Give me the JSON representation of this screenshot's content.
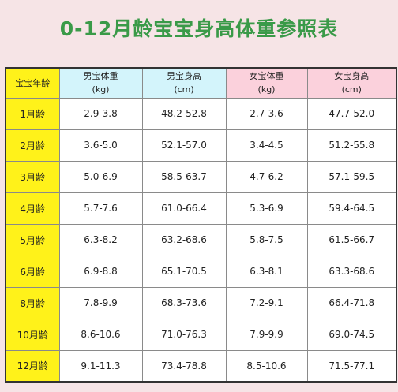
{
  "title": "0-12月龄宝宝身高体重参照表",
  "colors": {
    "background": "#f6e4e6",
    "title": "#3a9a48",
    "age_column": "#fff21a",
    "boy_header": "#d3f4fb",
    "girl_header": "#fbd1dc"
  },
  "table": {
    "headers": [
      {
        "label": "宝宝年龄",
        "unit": ""
      },
      {
        "label": "男宝体重",
        "unit": "(kg)"
      },
      {
        "label": "男宝身高",
        "unit": "(cm)"
      },
      {
        "label": "女宝体重",
        "unit": "(kg)"
      },
      {
        "label": "女宝身高",
        "unit": "(cm)"
      }
    ],
    "rows": [
      {
        "age": "1月龄",
        "boy_weight": "2.9-3.8",
        "boy_height": "48.2-52.8",
        "girl_weight": "2.7-3.6",
        "girl_height": "47.7-52.0"
      },
      {
        "age": "2月龄",
        "boy_weight": "3.6-5.0",
        "boy_height": "52.1-57.0",
        "girl_weight": "3.4-4.5",
        "girl_height": "51.2-55.8"
      },
      {
        "age": "3月龄",
        "boy_weight": "5.0-6.9",
        "boy_height": "58.5-63.7",
        "girl_weight": "4.7-6.2",
        "girl_height": "57.1-59.5"
      },
      {
        "age": "4月龄",
        "boy_weight": "5.7-7.6",
        "boy_height": "61.0-66.4",
        "girl_weight": "5.3-6.9",
        "girl_height": "59.4-64.5"
      },
      {
        "age": "5月龄",
        "boy_weight": "6.3-8.2",
        "boy_height": "63.2-68.6",
        "girl_weight": "5.8-7.5",
        "girl_height": "61.5-66.7"
      },
      {
        "age": "6月龄",
        "boy_weight": "6.9-8.8",
        "boy_height": "65.1-70.5",
        "girl_weight": "6.3-8.1",
        "girl_height": "63.3-68.6"
      },
      {
        "age": "8月龄",
        "boy_weight": "7.8-9.9",
        "boy_height": "68.3-73.6",
        "girl_weight": "7.2-9.1",
        "girl_height": "66.4-71.8"
      },
      {
        "age": "10月龄",
        "boy_weight": "8.6-10.6",
        "boy_height": "71.0-76.3",
        "girl_weight": "7.9-9.9",
        "girl_height": "69.0-74.5"
      },
      {
        "age": "12月龄",
        "boy_weight": "9.1-11.3",
        "boy_height": "73.4-78.8",
        "girl_weight": "8.5-10.6",
        "girl_height": "71.5-77.1"
      }
    ]
  }
}
